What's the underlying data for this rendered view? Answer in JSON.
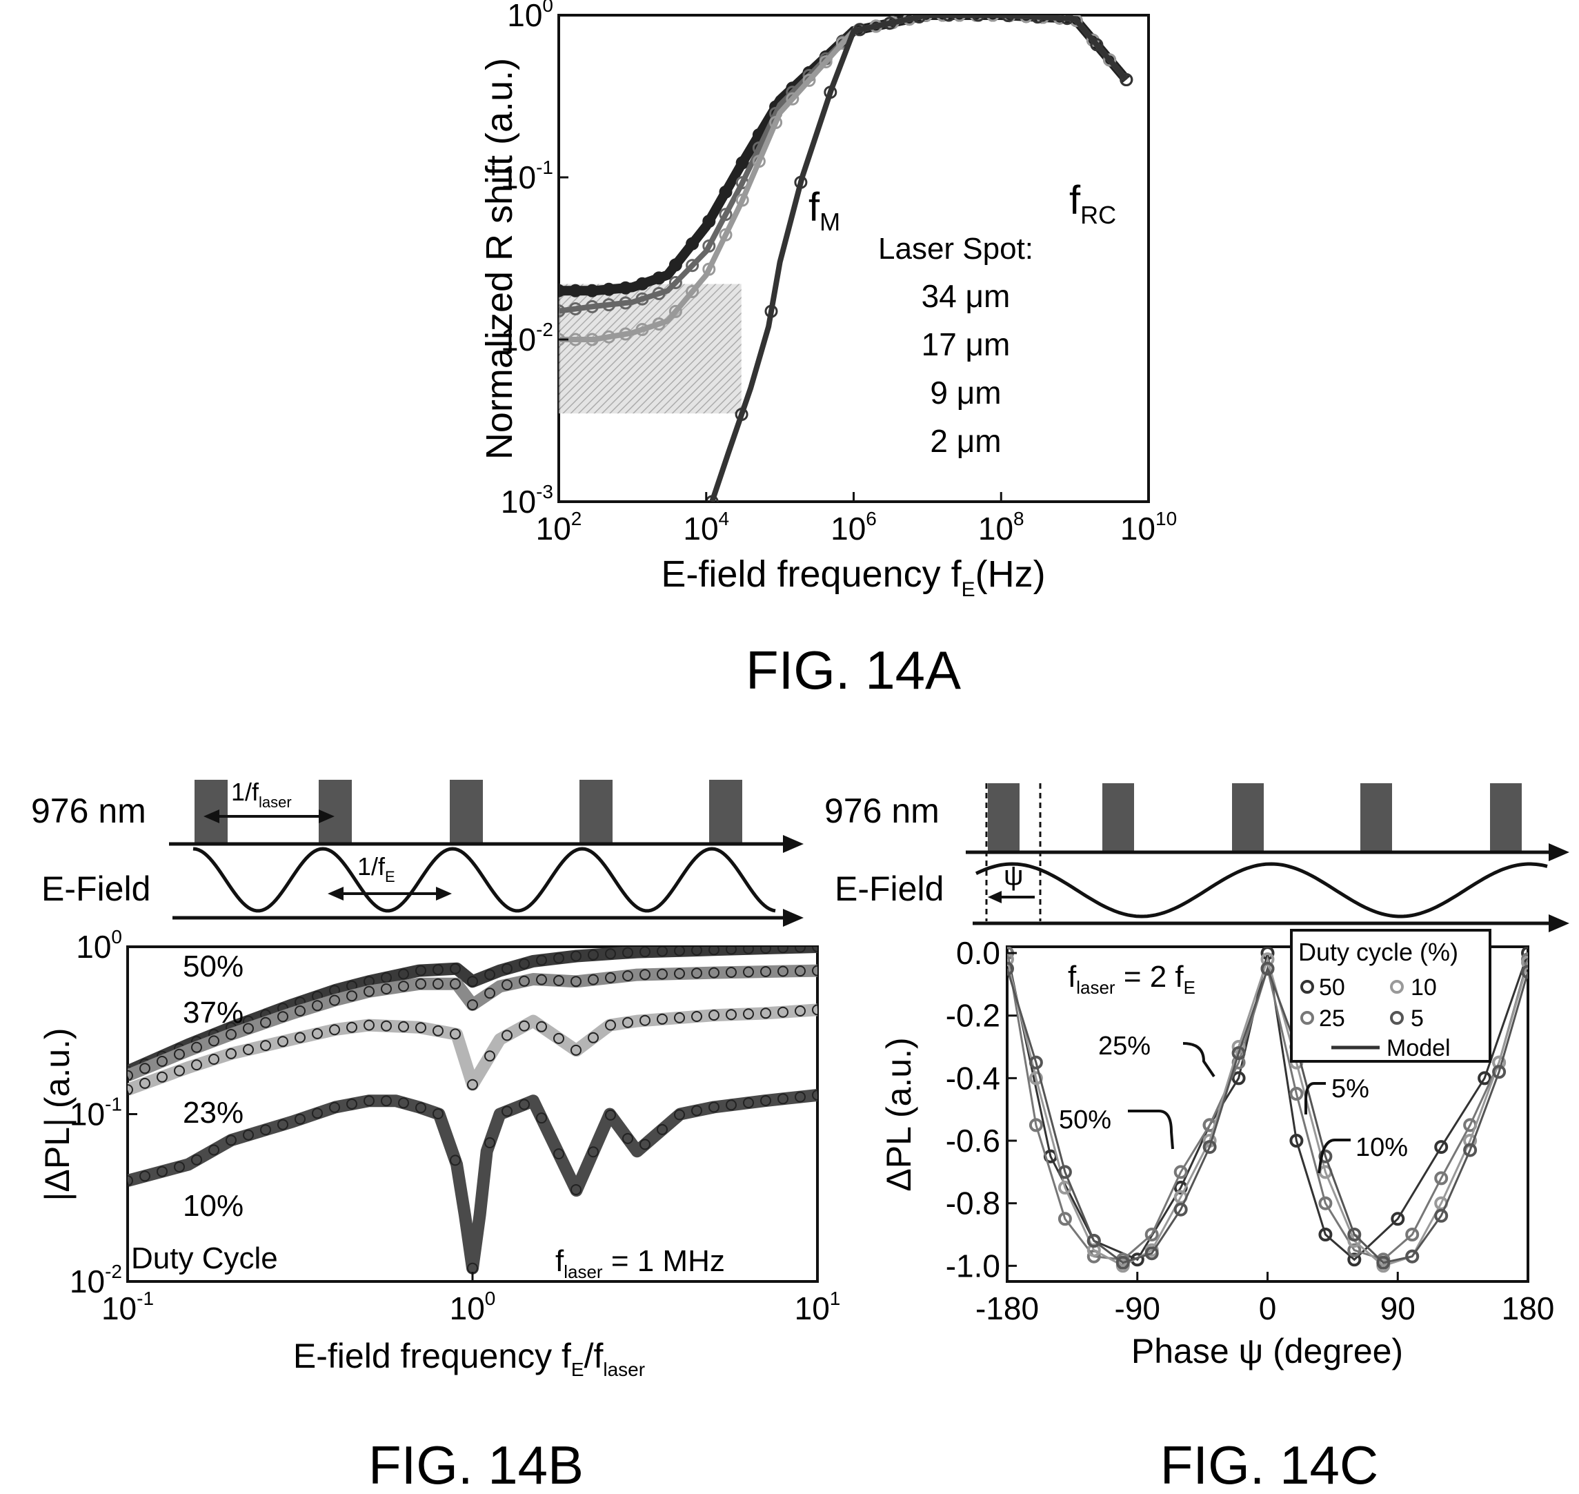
{
  "chart_data": [
    {
      "id": "14A",
      "type": "scatter",
      "figure_label": "FIG. 14A",
      "xlabel": "E-field frequency f",
      "xlabel_sub": "E",
      "xlabel_unit": "(Hz)",
      "ylabel": "Normalized R shift (a.u.)",
      "x_scale": "log",
      "y_scale": "log",
      "xlim": [
        100,
        10000000000
      ],
      "ylim": [
        0.001,
        1
      ],
      "x_ticks": [
        {
          "base": "10",
          "exp": "2"
        },
        {
          "base": "10",
          "exp": "4"
        },
        {
          "base": "10",
          "exp": "6"
        },
        {
          "base": "10",
          "exp": "8"
        },
        {
          "base": "10",
          "exp": "10"
        }
      ],
      "y_ticks": [
        {
          "base": "10",
          "exp": "-3"
        },
        {
          "base": "10",
          "exp": "-2"
        },
        {
          "base": "10",
          "exp": "-1"
        },
        {
          "base": "10",
          "exp": "0"
        }
      ],
      "annotations": {
        "fM": "f",
        "fM_sub": "M",
        "fRC": "f",
        "fRC_sub": "RC"
      },
      "legend_title": "Laser Spot:",
      "legend_items": [
        "34 μm",
        "17 μm",
        "9  μm",
        "2  μm"
      ],
      "series": [
        {
          "spot_um": 34,
          "gray": "#222222",
          "x": [
            100,
            300,
            1000,
            3000,
            10000,
            30000,
            100000,
            1000000,
            10000000,
            100000000,
            1000000000,
            5000000000
          ],
          "y": [
            0.02,
            0.02,
            0.021,
            0.025,
            0.05,
            0.12,
            0.3,
            0.8,
            1.0,
            1.0,
            0.95,
            0.4
          ]
        },
        {
          "spot_um": 17,
          "gray": "#666666",
          "x": [
            100,
            300,
            1000,
            3000,
            10000,
            30000,
            100000,
            1000000,
            10000000,
            100000000,
            1000000000,
            5000000000
          ],
          "y": [
            0.015,
            0.016,
            0.017,
            0.02,
            0.035,
            0.09,
            0.28,
            0.8,
            1.0,
            1.0,
            0.95,
            0.4
          ]
        },
        {
          "spot_um": 9,
          "gray": "#999999",
          "x": [
            100,
            300,
            1000,
            3000,
            10000,
            30000,
            100000,
            1000000,
            10000000,
            100000000,
            1000000000,
            5000000000
          ],
          "y": [
            0.01,
            0.01,
            0.011,
            0.013,
            0.025,
            0.07,
            0.25,
            0.8,
            1.0,
            1.0,
            0.95,
            0.4
          ]
        },
        {
          "spot_um": 2,
          "gray": "#333333",
          "x": [
            12000,
            20000,
            40000,
            70000,
            100000,
            200000,
            500000,
            1000000,
            10000000,
            100000000,
            1000000000,
            5000000000
          ],
          "y": [
            0.001,
            0.002,
            0.005,
            0.012,
            0.03,
            0.1,
            0.35,
            0.8,
            1.0,
            1.0,
            0.95,
            0.4
          ]
        }
      ]
    },
    {
      "id": "14B",
      "type": "line",
      "figure_label": "FIG. 14B",
      "xlabel": "E-field frequency f",
      "xlabel_sub1": "E",
      "xlabel_sep": "/f",
      "xlabel_sub2": "laser",
      "ylabel": "|ΔPL| (a.u.)",
      "x_scale": "log",
      "y_scale": "log",
      "xlim": [
        0.1,
        10
      ],
      "ylim": [
        0.01,
        1
      ],
      "x_ticks": [
        {
          "base": "10",
          "exp": "-1"
        },
        {
          "base": "10",
          "exp": "0"
        },
        {
          "base": "10",
          "exp": "1"
        }
      ],
      "y_ticks": [
        {
          "base": "10",
          "exp": "-2"
        },
        {
          "base": "10",
          "exp": "-1"
        },
        {
          "base": "10",
          "exp": "0"
        }
      ],
      "duty_cycle_title": "Duty Cycle",
      "flaser_text": {
        "main": "f",
        "sub": "laser",
        "rest": " = 1 MHz"
      },
      "schematic": {
        "laser_label": "976 nm",
        "field_label": "E-Field",
        "period_laser": "1/f",
        "period_laser_sub": "laser",
        "period_field": "1/f",
        "period_field_sub": "E"
      },
      "series": [
        {
          "name": "50%",
          "gray": "#3a3a3a",
          "x": [
            0.1,
            0.15,
            0.2,
            0.3,
            0.4,
            0.5,
            0.7,
            0.9,
            1.0,
            1.2,
            1.5,
            2,
            3,
            5,
            7,
            10
          ],
          "y": [
            0.18,
            0.26,
            0.33,
            0.45,
            0.55,
            0.62,
            0.72,
            0.74,
            0.62,
            0.72,
            0.82,
            0.88,
            0.93,
            0.96,
            0.98,
            1.0
          ]
        },
        {
          "name": "37%",
          "gray": "#8a8a8a",
          "x": [
            0.1,
            0.15,
            0.2,
            0.3,
            0.4,
            0.5,
            0.7,
            0.9,
            1.0,
            1.2,
            1.5,
            2,
            3,
            5,
            7,
            10
          ],
          "y": [
            0.17,
            0.24,
            0.3,
            0.4,
            0.48,
            0.54,
            0.6,
            0.6,
            0.45,
            0.58,
            0.64,
            0.62,
            0.68,
            0.7,
            0.71,
            0.72
          ]
        },
        {
          "name": "23%",
          "gray": "#b5b5b5",
          "x": [
            0.1,
            0.15,
            0.2,
            0.3,
            0.4,
            0.5,
            0.7,
            0.9,
            1.0,
            1.2,
            1.5,
            2,
            2.5,
            3,
            5,
            7,
            10
          ],
          "y": [
            0.14,
            0.19,
            0.23,
            0.28,
            0.32,
            0.34,
            0.33,
            0.3,
            0.15,
            0.28,
            0.36,
            0.24,
            0.34,
            0.36,
            0.39,
            0.4,
            0.42
          ]
        },
        {
          "name": "10%",
          "gray": "#4a4a4a",
          "x": [
            0.1,
            0.15,
            0.2,
            0.3,
            0.4,
            0.5,
            0.6,
            0.7,
            0.8,
            0.9,
            0.95,
            1.0,
            1.05,
            1.1,
            1.2,
            1.5,
            2,
            2.5,
            3,
            4,
            5,
            7,
            10
          ],
          "y": [
            0.04,
            0.05,
            0.07,
            0.09,
            0.11,
            0.12,
            0.12,
            0.11,
            0.1,
            0.05,
            0.025,
            0.012,
            0.025,
            0.06,
            0.1,
            0.12,
            0.035,
            0.1,
            0.06,
            0.1,
            0.11,
            0.12,
            0.13
          ]
        }
      ]
    },
    {
      "id": "14C",
      "type": "scatter",
      "figure_label": "FIG. 14C",
      "xlabel": "Phase ψ (degree)",
      "ylabel": "ΔPL (a.u.)",
      "xlim": [
        -180,
        180
      ],
      "ylim": [
        -1.05,
        0.02
      ],
      "x_ticks": [
        "-180",
        "-90",
        "0",
        "90",
        "180"
      ],
      "y_ticks": [
        "0.0",
        "-0.2",
        "-0.4",
        "-0.6",
        "-0.8",
        "-1.0"
      ],
      "flaser_text": {
        "f1": "f",
        "sub1": "laser",
        "mid": " = 2 f",
        "sub2": "E"
      },
      "schematic": {
        "laser_label": "976 nm",
        "field_label": "E-Field",
        "psi": "ψ"
      },
      "legend_title": "Duty cycle (%)",
      "legend_items": [
        "50",
        "10",
        "25",
        "5",
        "Model"
      ],
      "curve_labels": [
        "25%",
        "50%",
        "5%",
        "10%"
      ],
      "series": [
        {
          "duty": 50,
          "gray": "#333333",
          "x": [
            -180,
            -150,
            -120,
            -90,
            -60,
            -40,
            -20,
            0,
            20,
            40,
            60,
            90,
            120,
            150,
            180
          ],
          "y": [
            0.0,
            -0.65,
            -0.92,
            -0.98,
            -0.75,
            -0.55,
            -0.4,
            0.0,
            -0.6,
            -0.9,
            -0.98,
            -0.85,
            -0.62,
            -0.4,
            0.0
          ]
        },
        {
          "duty": 25,
          "gray": "#777777",
          "x": [
            -180,
            -160,
            -140,
            -120,
            -100,
            -80,
            -60,
            -40,
            -20,
            0,
            20,
            40,
            60,
            80,
            100,
            120,
            140,
            160,
            180
          ],
          "y": [
            0.0,
            -0.55,
            -0.85,
            -0.97,
            -0.98,
            -0.9,
            -0.7,
            -0.55,
            -0.35,
            -0.05,
            -0.45,
            -0.8,
            -0.95,
            -0.98,
            -0.9,
            -0.72,
            -0.55,
            -0.35,
            -0.02
          ]
        },
        {
          "duty": 10,
          "gray": "#999999",
          "x": [
            -180,
            -160,
            -140,
            -120,
            -100,
            -80,
            -60,
            -40,
            -20,
            0,
            20,
            40,
            60,
            80,
            100,
            120,
            140,
            160,
            180
          ],
          "y": [
            -0.02,
            -0.4,
            -0.75,
            -0.95,
            -1.0,
            -0.95,
            -0.78,
            -0.6,
            -0.3,
            -0.02,
            -0.35,
            -0.7,
            -0.92,
            -1.0,
            -0.97,
            -0.8,
            -0.6,
            -0.35,
            -0.03
          ]
        },
        {
          "duty": 5,
          "gray": "#555555",
          "x": [
            -180,
            -160,
            -140,
            -120,
            -100,
            -80,
            -60,
            -40,
            -20,
            0,
            20,
            40,
            60,
            80,
            100,
            120,
            140,
            160,
            180
          ],
          "y": [
            -0.05,
            -0.35,
            -0.7,
            -0.92,
            -0.99,
            -0.96,
            -0.82,
            -0.62,
            -0.32,
            -0.05,
            -0.3,
            -0.65,
            -0.9,
            -0.99,
            -0.97,
            -0.84,
            -0.63,
            -0.38,
            -0.06
          ]
        }
      ]
    }
  ]
}
